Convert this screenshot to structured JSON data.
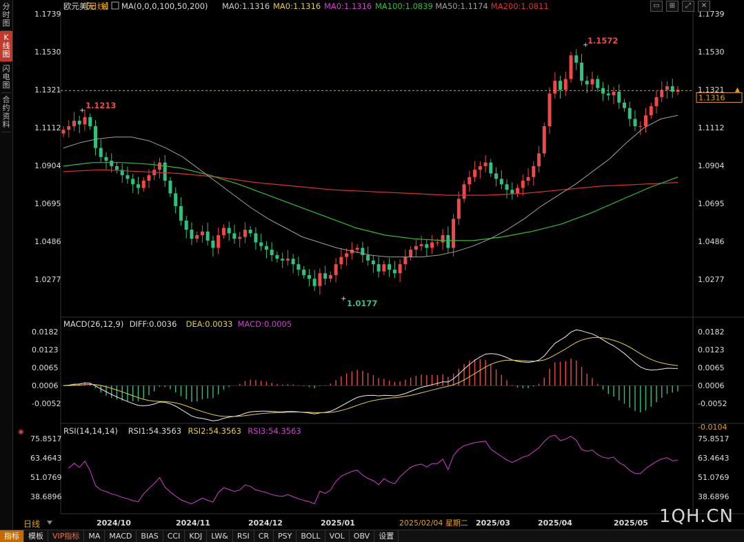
{
  "sidebar": {
    "tabs": [
      {
        "label": "分时图",
        "active": false
      },
      {
        "label": "K线图",
        "active": true
      },
      {
        "label": "闪电图",
        "active": false
      },
      {
        "label": "合约资料",
        "active": false
      }
    ]
  },
  "header": {
    "symbol": "欧元美元",
    "period_tag": "【日线】",
    "ma_params": "MA(0,0,0,100,50,200)",
    "ma_values": [
      {
        "label": "MA0:1.1316",
        "color": "#cccccc"
      },
      {
        "label": "MA0:1.1316",
        "color": "#e6d03a"
      },
      {
        "label": "MA0:1.1316",
        "color": "#d040d0"
      },
      {
        "label": "MA100:1.0839",
        "color": "#30c030"
      },
      {
        "label": "MA50:1.1174",
        "color": "#a0a0a0"
      },
      {
        "label": "MA200:1.0811",
        "color": "#e03030"
      }
    ]
  },
  "price_axis": {
    "ticks": [
      "1.1739",
      "1.1530",
      "1.1321",
      "1.1112",
      "1.0904",
      "1.0695",
      "1.0486",
      "1.0277"
    ],
    "current_price": "1.1316",
    "high_label": "1.1572",
    "low_label": "1.0177",
    "early_high_label": "1.1213"
  },
  "macd": {
    "title": "MACD(26,12,9)",
    "diff": "DIFF:0.0036",
    "dea": "DEA:0.0033",
    "macd": "MACD:0.0005",
    "ticks": [
      "0.0182",
      "0.0123",
      "0.0065",
      "0.0006",
      "-0.0052"
    ],
    "bottom_label": "-0.0104"
  },
  "rsi": {
    "title": "RSI(14,14,14)",
    "rsi1": "RSI1:54.3563",
    "rsi2": "RSI2:54.3563",
    "rsi3": "RSI3:54.3563",
    "ticks": [
      "75.8517",
      "63.4643",
      "51.0769",
      "38.6896"
    ]
  },
  "x_axis": {
    "labels": [
      "2024/10",
      "2024/11",
      "2024/12",
      "2025/01",
      "2025/03",
      "2025/04",
      "2025/05"
    ],
    "cursor_date": "2025/02/04 星期二"
  },
  "period_selector": "日线",
  "bottom_tabs": [
    "指标",
    "模板",
    "VIP指标",
    "MA",
    "MACD",
    "BIAS",
    "CCI",
    "KDJ",
    "LW&",
    "RSI",
    "CR",
    "PSY",
    "BOLL",
    "VOL",
    "OBV",
    "设置"
  ],
  "watermark": "1QH.CN",
  "colors": {
    "up": "#f04848",
    "down": "#2ec27e",
    "ma50": "#a0a0a0",
    "ma100": "#30c030",
    "ma200": "#e03030",
    "dea": "#e6d03a",
    "macd_label": "#d040d0",
    "rsi": "#d040d0",
    "price_line": "#e8a400"
  },
  "chart_data": {
    "type": "candlestick",
    "x": [
      "2024/10",
      "2024/11",
      "2024/12",
      "2025/01",
      "2025/03",
      "2025/04",
      "2025/05"
    ],
    "closes": [
      1.11,
      1.112,
      1.115,
      1.113,
      1.117,
      1.112,
      1.1,
      1.095,
      1.093,
      1.09,
      1.088,
      1.085,
      1.083,
      1.08,
      1.078,
      1.082,
      1.085,
      1.088,
      1.092,
      1.082,
      1.075,
      1.068,
      1.06,
      1.055,
      1.05,
      1.052,
      1.054,
      1.049,
      1.045,
      1.052,
      1.056,
      1.053,
      1.05,
      1.051,
      1.055,
      1.053,
      1.048,
      1.046,
      1.044,
      1.041,
      1.039,
      1.038,
      1.039,
      1.036,
      1.033,
      1.03,
      1.028,
      1.024,
      1.031,
      1.028,
      1.03,
      1.036,
      1.04,
      1.042,
      1.044,
      1.045,
      1.041,
      1.038,
      1.036,
      1.032,
      1.036,
      1.033,
      1.031,
      1.036,
      1.04,
      1.044,
      1.046,
      1.047,
      1.045,
      1.048,
      1.048,
      1.052,
      1.045,
      1.061,
      1.072,
      1.08,
      1.084,
      1.088,
      1.09,
      1.092,
      1.086,
      1.083,
      1.08,
      1.077,
      1.075,
      1.078,
      1.082,
      1.084,
      1.09,
      1.097,
      1.112,
      1.13,
      1.137,
      1.132,
      1.138,
      1.151,
      1.147,
      1.137,
      1.135,
      1.138,
      1.133,
      1.13,
      1.129,
      1.131,
      1.125,
      1.122,
      1.116,
      1.112,
      1.112,
      1.118,
      1.123,
      1.128,
      1.132,
      1.134,
      1.131,
      1.132
    ],
    "ma50": [
      1.1,
      1.103,
      1.105,
      1.106,
      1.106,
      1.104,
      1.1,
      1.095,
      1.088,
      1.081,
      1.074,
      1.067,
      1.061,
      1.056,
      1.051,
      1.048,
      1.045,
      1.043,
      1.041,
      1.04,
      1.04,
      1.04,
      1.041,
      1.043,
      1.046,
      1.05,
      1.055,
      1.061,
      1.068,
      1.074,
      1.08,
      1.087,
      1.094,
      1.103,
      1.111,
      1.116,
      1.118
    ],
    "ma100": [
      1.09,
      1.092,
      1.092,
      1.091,
      1.089,
      1.085,
      1.08,
      1.074,
      1.068,
      1.062,
      1.056,
      1.052,
      1.05,
      1.049,
      1.049,
      1.051,
      1.054,
      1.058,
      1.064,
      1.071,
      1.078,
      1.084
    ],
    "ma200": [
      1.087,
      1.088,
      1.087,
      1.086,
      1.084,
      1.081,
      1.079,
      1.077,
      1.076,
      1.075,
      1.074,
      1.074,
      1.075,
      1.077,
      1.079,
      1.08,
      1.081
    ],
    "macd_diff_range": [
      -0.0104,
      0.0182
    ],
    "rsi_range": [
      38.6896,
      75.8517
    ]
  }
}
